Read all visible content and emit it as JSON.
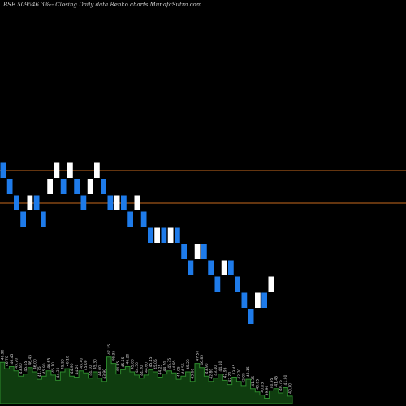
{
  "chart_data": {
    "type": "renko",
    "title": "BSE 509546  3%-- Closing Daily data Renko charts MunafaSutra.com",
    "brick_size": 1,
    "colors": {
      "up_brick": "#ffffff",
      "down_brick": "#1e7bea",
      "reference_line": "#c96a1e",
      "volume_area": "#0f3d0f",
      "volume_outline": "#2e8b2e",
      "background": "#000000"
    },
    "reference_lines": [
      48.5,
      46.5
    ],
    "ylim": [
      36,
      56
    ],
    "bricks": [
      {
        "dir": "down",
        "value": 48
      },
      {
        "dir": "down",
        "value": 47
      },
      {
        "dir": "down",
        "value": 46
      },
      {
        "dir": "down",
        "value": 45
      },
      {
        "dir": "up",
        "value": 46
      },
      {
        "dir": "down",
        "value": 46
      },
      {
        "dir": "down",
        "value": 45
      },
      {
        "dir": "up",
        "value": 47
      },
      {
        "dir": "up",
        "value": 48
      },
      {
        "dir": "down",
        "value": 47
      },
      {
        "dir": "up",
        "value": 48
      },
      {
        "dir": "down",
        "value": 47
      },
      {
        "dir": "down",
        "value": 46
      },
      {
        "dir": "up",
        "value": 47
      },
      {
        "dir": "up",
        "value": 48
      },
      {
        "dir": "down",
        "value": 47
      },
      {
        "dir": "down",
        "value": 46
      },
      {
        "dir": "up",
        "value": 46
      },
      {
        "dir": "down",
        "value": 46
      },
      {
        "dir": "down",
        "value": 45
      },
      {
        "dir": "up",
        "value": 46
      },
      {
        "dir": "down",
        "value": 45
      },
      {
        "dir": "down",
        "value": 44
      },
      {
        "dir": "up",
        "value": 44
      },
      {
        "dir": "down",
        "value": 44
      },
      {
        "dir": "up",
        "value": 44
      },
      {
        "dir": "down",
        "value": 44
      },
      {
        "dir": "down",
        "value": 43
      },
      {
        "dir": "down",
        "value": 42
      },
      {
        "dir": "up",
        "value": 43
      },
      {
        "dir": "down",
        "value": 43
      },
      {
        "dir": "down",
        "value": 42
      },
      {
        "dir": "down",
        "value": 41
      },
      {
        "dir": "up",
        "value": 42
      },
      {
        "dir": "down",
        "value": 42
      },
      {
        "dir": "down",
        "value": 41
      },
      {
        "dir": "down",
        "value": 40
      },
      {
        "dir": "down",
        "value": 39
      },
      {
        "dir": "up",
        "value": 40
      },
      {
        "dir": "down",
        "value": 40
      },
      {
        "dir": "up",
        "value": 41
      }
    ],
    "volume": [
      {
        "value": 39,
        "label": "46.90"
      },
      {
        "value": 33,
        "label": "46.70"
      },
      {
        "value": 35,
        "label": "46.45"
      },
      {
        "value": 31,
        "label": "45.20"
      },
      {
        "value": 26,
        "label": "43.80"
      },
      {
        "value": 28,
        "label": "45.65"
      },
      {
        "value": 34,
        "label": "46.45"
      },
      {
        "value": 30,
        "label": "46.00"
      },
      {
        "value": 23,
        "label": "44.75"
      },
      {
        "value": 26,
        "label": "45.90"
      },
      {
        "value": 31,
        "label": "46.65"
      },
      {
        "value": 27,
        "label": "45.10"
      },
      {
        "value": 22,
        "label": "44.30"
      },
      {
        "value": 30,
        "label": "45.50"
      },
      {
        "value": 33,
        "label": "46.10"
      },
      {
        "value": 26,
        "label": "44.90"
      },
      {
        "value": 25,
        "label": "44.20"
      },
      {
        "value": 31,
        "label": "45.40"
      },
      {
        "value": 29,
        "label": "45.00"
      },
      {
        "value": 24,
        "label": "44.10"
      },
      {
        "value": 30,
        "label": "45.30"
      },
      {
        "value": 24,
        "label": "44.00"
      },
      {
        "value": 21,
        "label": "43.90"
      },
      {
        "value": 44,
        "label": "47.15"
      },
      {
        "value": 38,
        "label": "46.35"
      },
      {
        "value": 28,
        "label": "44.85"
      },
      {
        "value": 32,
        "label": "45.55"
      },
      {
        "value": 35,
        "label": "46.20"
      },
      {
        "value": 30,
        "label": "45.00"
      },
      {
        "value": 27,
        "label": "44.50"
      },
      {
        "value": 24,
        "label": "44.20"
      },
      {
        "value": 27,
        "label": "44.60"
      },
      {
        "value": 32,
        "label": "45.45"
      },
      {
        "value": 30,
        "label": "45.05"
      },
      {
        "value": 25,
        "label": "44.25"
      },
      {
        "value": 28,
        "label": "44.70"
      },
      {
        "value": 31,
        "label": "45.35"
      },
      {
        "value": 29,
        "label": "44.95"
      },
      {
        "value": 23,
        "label": "44.05"
      },
      {
        "value": 26,
        "label": "44.55"
      },
      {
        "value": 30,
        "label": "45.20"
      },
      {
        "value": 21,
        "label": "43.60"
      },
      {
        "value": 38,
        "label": "47.50"
      },
      {
        "value": 34,
        "label": "46.85"
      },
      {
        "value": 26,
        "label": "43.90"
      },
      {
        "value": 21,
        "label": "42.80"
      },
      {
        "value": 24,
        "label": "43.40"
      },
      {
        "value": 28,
        "label": "44.10"
      },
      {
        "value": 22,
        "label": "42.95"
      },
      {
        "value": 18,
        "label": "42.20"
      },
      {
        "value": 25,
        "label": "43.45"
      },
      {
        "value": 21,
        "label": "42.70"
      },
      {
        "value": 17,
        "label": "42.05"
      },
      {
        "value": 23,
        "label": "43.15"
      },
      {
        "value": 14,
        "label": "41.35"
      },
      {
        "value": 11,
        "label": "40.85"
      },
      {
        "value": 8,
        "label": "40.05"
      },
      {
        "value": 5,
        "label": "39.90"
      },
      {
        "value": 12,
        "label": "40.95"
      },
      {
        "value": 14,
        "label": "41.45"
      },
      {
        "value": 10,
        "label": "40.75"
      },
      {
        "value": 15,
        "label": "41.90"
      },
      {
        "value": 7,
        "label": "40.30"
      }
    ]
  }
}
